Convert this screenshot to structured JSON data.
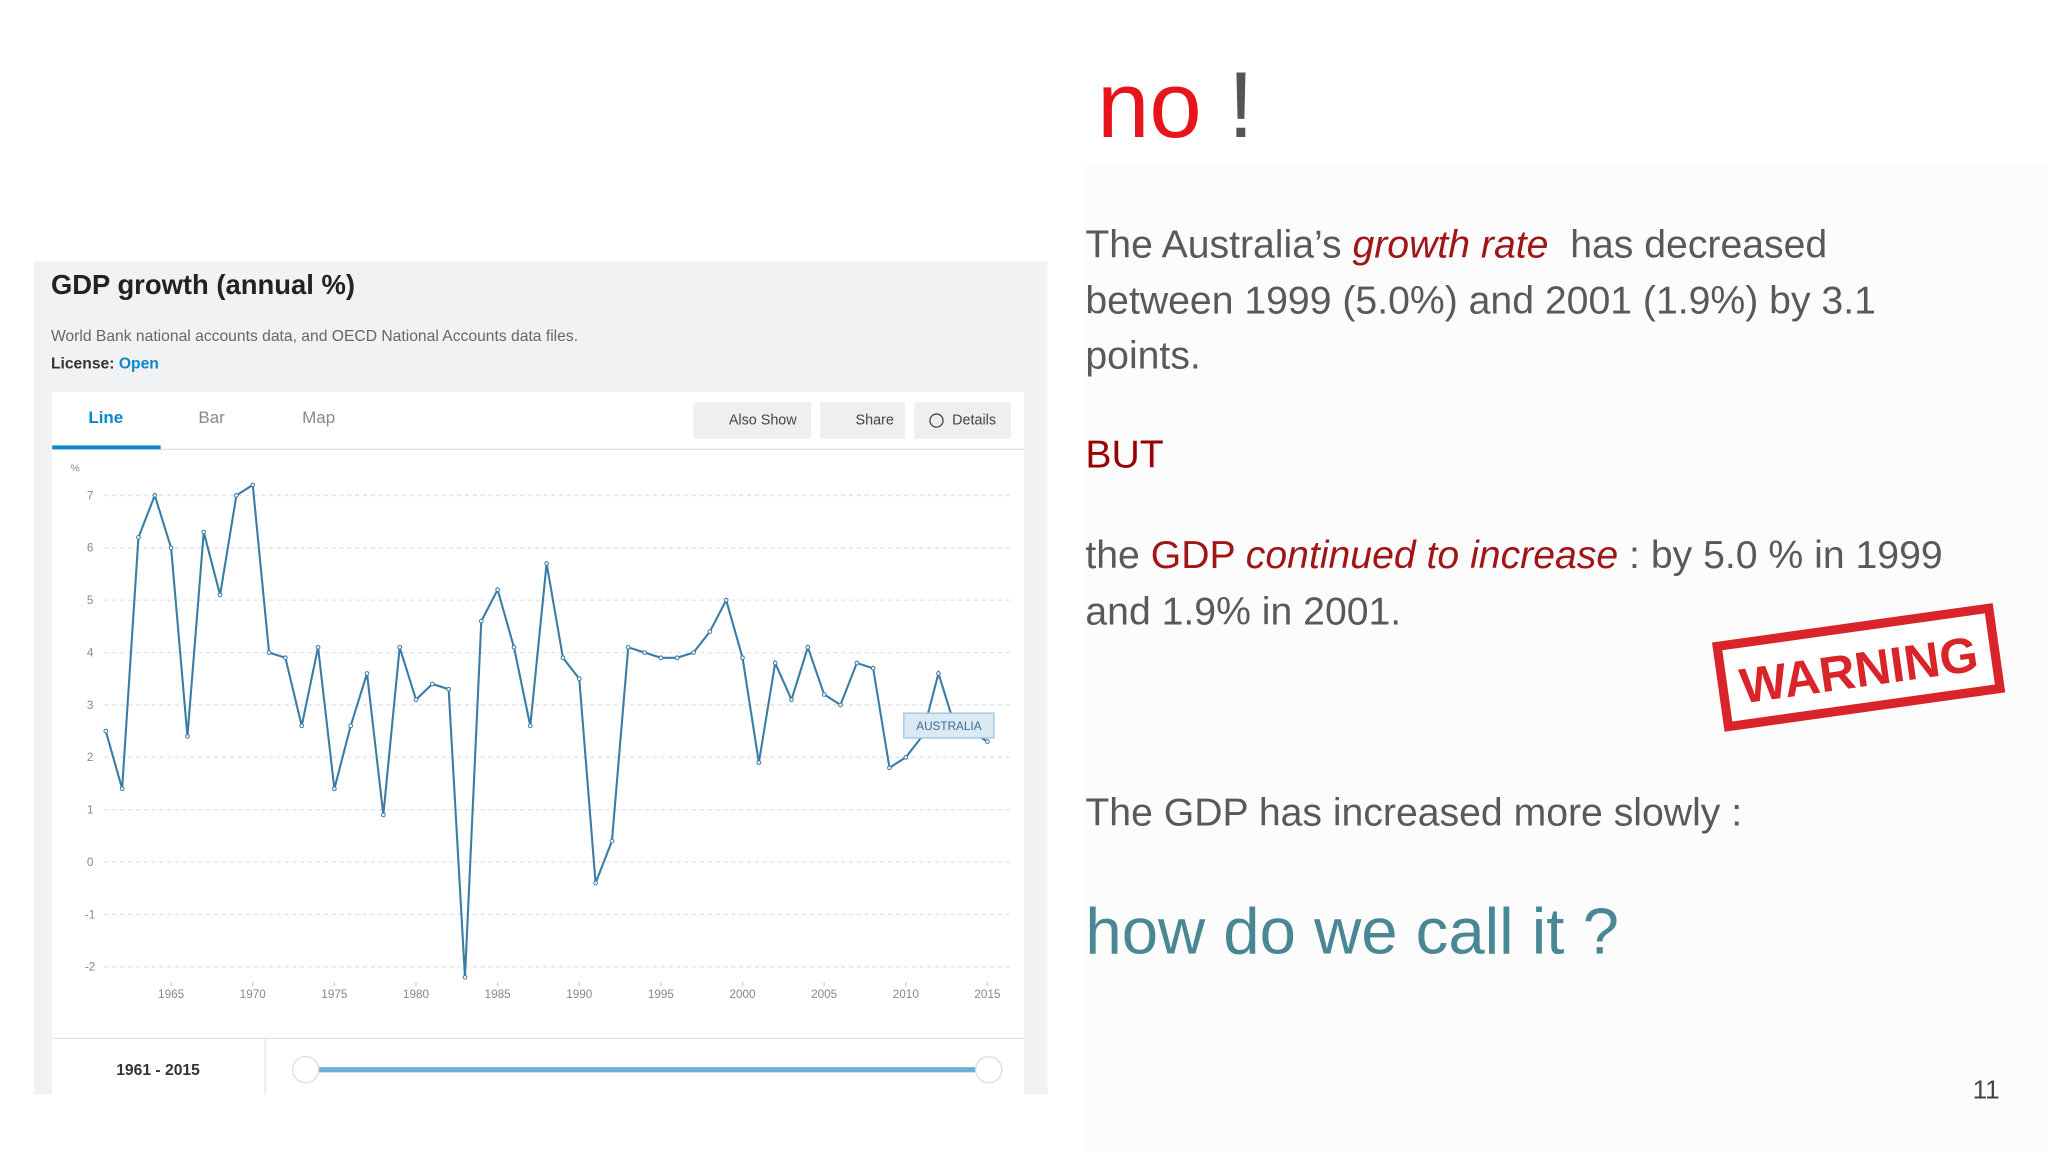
{
  "chart_data": {
    "type": "line",
    "title": "GDP growth (annual %)",
    "subtitle": "World Bank national accounts data, and OECD National Accounts data files.",
    "y_label": "%",
    "x": [
      1961,
      1962,
      1963,
      1964,
      1965,
      1966,
      1967,
      1968,
      1969,
      1970,
      1971,
      1972,
      1973,
      1974,
      1975,
      1976,
      1977,
      1978,
      1979,
      1980,
      1981,
      1982,
      1983,
      1984,
      1985,
      1986,
      1987,
      1988,
      1989,
      1990,
      1991,
      1992,
      1993,
      1994,
      1995,
      1996,
      1997,
      1998,
      1999,
      2000,
      2001,
      2002,
      2003,
      2004,
      2005,
      2006,
      2007,
      2008,
      2009,
      2010,
      2011,
      2012,
      2013,
      2014,
      2015
    ],
    "series": [
      {
        "name": "AUSTRALIA",
        "color": "#3a7ca5",
        "values": [
          2.5,
          1.4,
          6.2,
          7.0,
          6.0,
          2.4,
          6.3,
          5.1,
          7.0,
          7.2,
          4.0,
          3.9,
          2.6,
          4.1,
          1.4,
          2.6,
          3.6,
          0.9,
          4.1,
          3.1,
          3.4,
          3.3,
          -2.2,
          4.6,
          5.2,
          4.1,
          2.6,
          5.7,
          3.9,
          3.5,
          -0.4,
          0.4,
          4.1,
          4.0,
          3.9,
          3.9,
          4.0,
          4.4,
          5.0,
          3.9,
          1.9,
          3.8,
          3.1,
          4.1,
          3.2,
          3.0,
          3.8,
          3.7,
          1.8,
          2.0,
          2.4,
          3.6,
          2.6,
          2.5,
          2.3
        ]
      }
    ],
    "xlim": [
      1960,
      2016
    ],
    "xticks": [
      1965,
      1970,
      1975,
      1980,
      1985,
      1990,
      1995,
      2000,
      2005,
      2010,
      2015
    ],
    "ylim": [
      -2.5,
      7.5
    ],
    "yticks": [
      -2,
      -1,
      0,
      1,
      2,
      3,
      4,
      5,
      6,
      7
    ],
    "grid": true
  },
  "widget": {
    "license_label": "License:",
    "license_value": "Open",
    "tabs": [
      "Line",
      "Bar",
      "Map"
    ],
    "buttons": [
      "Also Show",
      "Share",
      "Details"
    ],
    "range_sep": "-"
  },
  "slide": {
    "heading": "no",
    "exclaim": "!",
    "p1": [
      "The Australia’s ",
      "growth rate",
      "  has decreased"
    ],
    "p1_line2": "between 1999 (5.0%) and 2001 (1.9%) by 3.1",
    "p1_line3": "points.",
    "but": "BUT",
    "p2": [
      "the ",
      "GDP ",
      "continued to increase",
      " : by 5.0 % in 1999"
    ],
    "p2_line2": "and 1.9% in 2001.",
    "p3": "The GDP has increased more slowly :",
    "question": "how do we call it ?",
    "stamp": "WARNING",
    "page_number": "11"
  }
}
